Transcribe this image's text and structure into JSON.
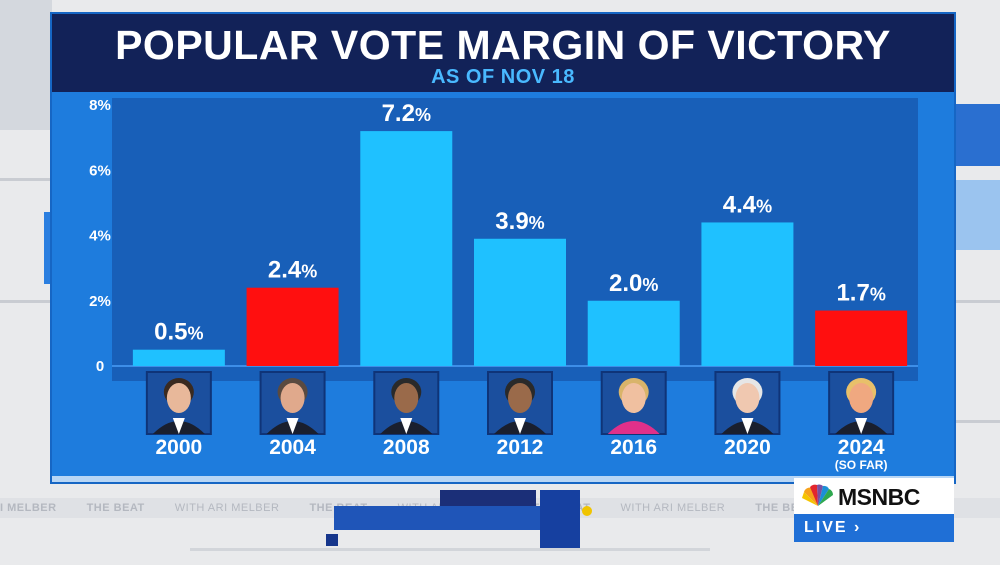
{
  "chart_data": {
    "type": "bar",
    "title": "POPULAR VOTE MARGIN OF VICTORY",
    "subtitle": "AS OF NOV 18",
    "ylim": [
      0,
      8
    ],
    "yticks": [
      {
        "value": 0,
        "label": "0"
      },
      {
        "value": 2,
        "label": "2%"
      },
      {
        "value": 4,
        "label": "4%"
      },
      {
        "value": 6,
        "label": "6%"
      },
      {
        "value": 8,
        "label": "8%"
      }
    ],
    "categories": [
      "2000",
      "2004",
      "2008",
      "2012",
      "2016",
      "2020",
      "2024"
    ],
    "category_notes": [
      "",
      "",
      "",
      "",
      "",
      "",
      "(SO FAR)"
    ],
    "values": [
      0.5,
      2.4,
      7.2,
      3.9,
      2.0,
      4.4,
      1.7
    ],
    "value_labels": [
      "0.5",
      "2.4",
      "7.2",
      "3.9",
      "2.0",
      "4.4",
      "1.7"
    ],
    "value_suffix": "%",
    "party": [
      "D",
      "R",
      "D",
      "D",
      "D",
      "D",
      "R"
    ],
    "colors": {
      "D": "#1fc1ff",
      "R": "#ff0f0f"
    }
  },
  "ticker": {
    "items": [
      "I MELBER",
      "THE BEAT",
      "WITH ARI MELBER",
      "THE BEAT",
      "WITH ARI MELBER",
      "THE BEAT",
      "WITH ARI MELBER",
      "THE BE",
      "THE BE"
    ]
  },
  "branding": {
    "network": "MSNBC",
    "live": "LIVE ›"
  }
}
